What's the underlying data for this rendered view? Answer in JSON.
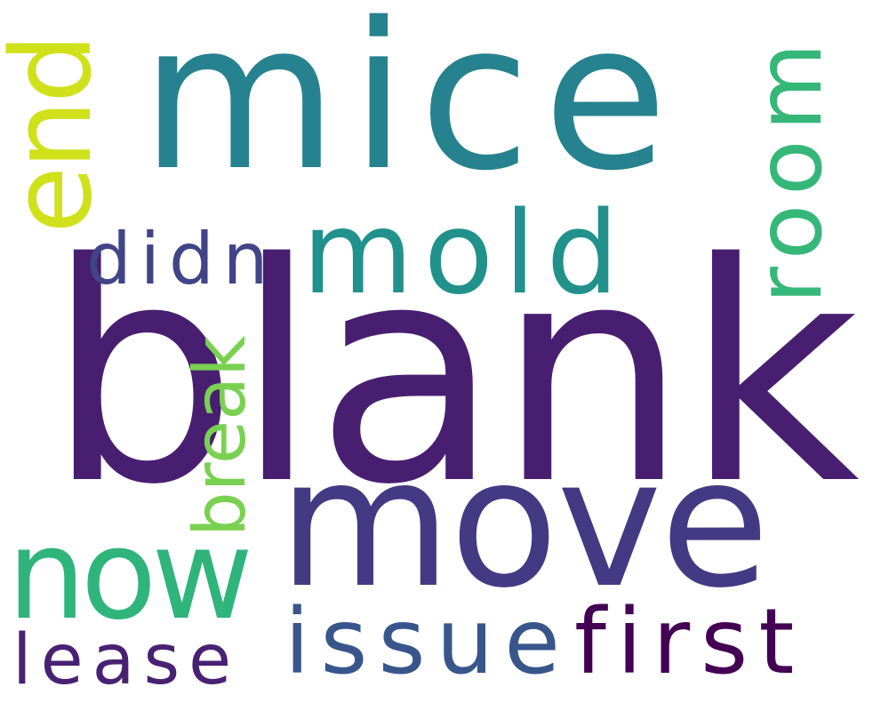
{
  "words": [
    {
      "text": "blank",
      "color": "#481f70"
    },
    {
      "text": "mice",
      "color": "#26828e"
    },
    {
      "text": "move",
      "color": "#443983"
    },
    {
      "text": "room",
      "color": "#35b779"
    },
    {
      "text": "mold",
      "color": "#21918c"
    },
    {
      "text": "now",
      "color": "#2fb47c"
    },
    {
      "text": "end",
      "color": "#d0e11c"
    },
    {
      "text": "didn",
      "color": "#414487"
    },
    {
      "text": "break",
      "color": "#7ad151"
    },
    {
      "text": "issue",
      "color": "#39568c"
    },
    {
      "text": "first",
      "color": "#440154"
    },
    {
      "text": "lease",
      "color": "#482173"
    }
  ]
}
